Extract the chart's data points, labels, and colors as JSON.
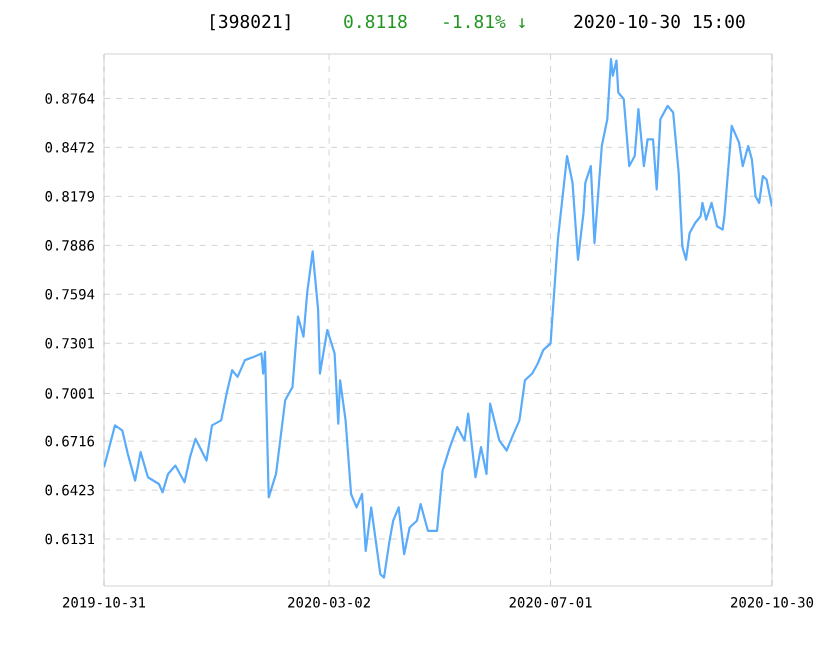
{
  "chart_data": {
    "type": "line",
    "title": "[398021]",
    "annotations": [
      "0.8118",
      "-1.81% ↓",
      "2020-10-30 15:00"
    ],
    "x": [
      "2019-10-31",
      "2019-11-06",
      "2019-11-10",
      "2019-11-13",
      "2019-11-17",
      "2019-11-20",
      "2019-11-24",
      "2019-11-30",
      "2019-12-02",
      "2019-12-05",
      "2019-12-09",
      "2019-12-14",
      "2019-12-17",
      "2019-12-20",
      "2019-12-26",
      "2019-12-29",
      "2020-01-03",
      "2020-01-06",
      "2020-01-09",
      "2020-01-12",
      "2020-01-16",
      "2020-01-21",
      "2020-01-25",
      "2020-01-26",
      "2020-01-27",
      "2020-01-29",
      "2020-02-02",
      "2020-02-07",
      "2020-02-11",
      "2020-02-14",
      "2020-02-17",
      "2020-02-19",
      "2020-02-22",
      "2020-02-25",
      "2020-02-26",
      "2020-03-01",
      "2020-03-05",
      "2020-03-07",
      "2020-03-08",
      "2020-03-11",
      "2020-03-14",
      "2020-03-17",
      "2020-03-20",
      "2020-03-22",
      "2020-03-25",
      "2020-03-30",
      "2020-04-01",
      "2020-04-04",
      "2020-04-06",
      "2020-04-09",
      "2020-04-12",
      "2020-04-15",
      "2020-04-19",
      "2020-04-21",
      "2020-04-25",
      "2020-04-30",
      "2020-05-03",
      "2020-05-07",
      "2020-05-11",
      "2020-05-15",
      "2020-05-17",
      "2020-05-21",
      "2020-05-24",
      "2020-05-27",
      "2020-05-29",
      "2020-06-03",
      "2020-06-07",
      "2020-06-10",
      "2020-06-14",
      "2020-06-17",
      "2020-06-21",
      "2020-06-24",
      "2020-06-27",
      "2020-07-01",
      "2020-07-05",
      "2020-07-10",
      "2020-07-13",
      "2020-07-16",
      "2020-07-19",
      "2020-07-20",
      "2020-07-23",
      "2020-07-25",
      "2020-07-29",
      "2020-08-01",
      "2020-08-03",
      "2020-08-04",
      "2020-08-06",
      "2020-08-07",
      "2020-08-10",
      "2020-08-13",
      "2020-08-16",
      "2020-08-18",
      "2020-08-21",
      "2020-08-23",
      "2020-08-26",
      "2020-08-28",
      "2020-08-30",
      "2020-09-03",
      "2020-09-06",
      "2020-09-09",
      "2020-09-11",
      "2020-09-13",
      "2020-09-15",
      "2020-09-18",
      "2020-09-21",
      "2020-09-22",
      "2020-09-24",
      "2020-09-27",
      "2020-09-30",
      "2020-10-03",
      "2020-10-04",
      "2020-10-08",
      "2020-10-12",
      "2020-10-14",
      "2020-10-17",
      "2020-10-19",
      "2020-10-21",
      "2020-10-23",
      "2020-10-25",
      "2020-10-27",
      "2020-10-30"
    ],
    "series": [
      {
        "color": "#5aacfb",
        "values": [
          0.656,
          0.681,
          0.678,
          0.664,
          0.648,
          0.665,
          0.65,
          0.646,
          0.641,
          0.652,
          0.657,
          0.647,
          0.662,
          0.673,
          0.66,
          0.681,
          0.684,
          0.7,
          0.714,
          0.71,
          0.72,
          0.722,
          0.724,
          0.712,
          0.725,
          0.638,
          0.652,
          0.696,
          0.704,
          0.746,
          0.734,
          0.76,
          0.785,
          0.75,
          0.712,
          0.738,
          0.724,
          0.682,
          0.708,
          0.684,
          0.64,
          0.632,
          0.64,
          0.606,
          0.632,
          0.592,
          0.59,
          0.612,
          0.624,
          0.632,
          0.604,
          0.62,
          0.624,
          0.634,
          0.618,
          0.618,
          0.654,
          0.668,
          0.68,
          0.672,
          0.688,
          0.65,
          0.668,
          0.652,
          0.694,
          0.672,
          0.666,
          0.674,
          0.684,
          0.708,
          0.712,
          0.718,
          0.726,
          0.73,
          0.792,
          0.842,
          0.826,
          0.78,
          0.808,
          0.826,
          0.836,
          0.79,
          0.848,
          0.864,
          0.9,
          0.89,
          0.899,
          0.88,
          0.876,
          0.836,
          0.842,
          0.87,
          0.836,
          0.852,
          0.852,
          0.822,
          0.864,
          0.872,
          0.868,
          0.832,
          0.788,
          0.78,
          0.796,
          0.802,
          0.806,
          0.814,
          0.804,
          0.814,
          0.8,
          0.798,
          0.806,
          0.86,
          0.85,
          0.836,
          0.848,
          0.84,
          0.818,
          0.814,
          0.83,
          0.828,
          0.8118
        ]
      }
    ],
    "xlim": [
      "2019-10-31",
      "2020-10-30"
    ],
    "xticks": [
      "2019-10-31",
      "2020-03-02",
      "2020-07-01",
      "2020-10-30"
    ],
    "ylim": [
      0.585,
      0.903
    ],
    "yticks": [
      0.6131,
      0.6423,
      0.6716,
      0.7001,
      0.7301,
      0.7594,
      0.7886,
      0.8179,
      0.8472,
      0.8764
    ],
    "grid": true,
    "marker": "none",
    "line_style": "solid"
  }
}
